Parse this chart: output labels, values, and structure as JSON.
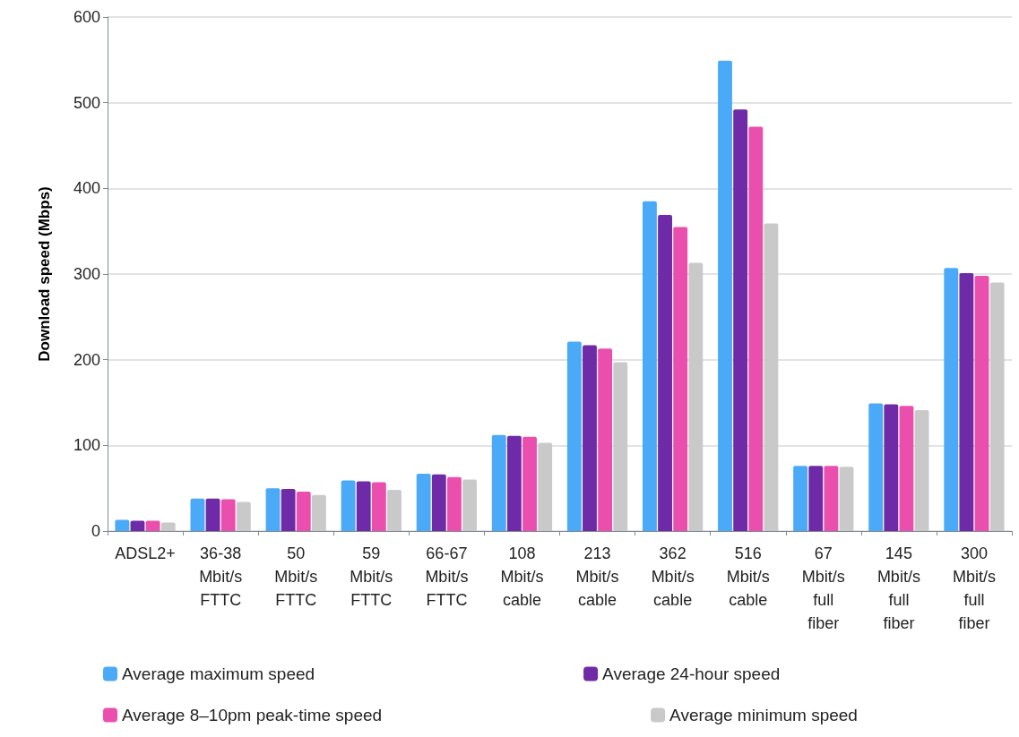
{
  "chart_data": {
    "type": "bar",
    "ylabel": "Download speed (Mbps)",
    "categories": [
      "ADSL2+",
      "36-38\nMbit/s\nFTTC",
      "50\nMbit/s\nFTTC",
      "59\nMbit/s\nFTTC",
      "66-67\nMbit/s\nFTTC",
      "108\nMbit/s\ncable",
      "213\nMbit/s\ncable",
      "362\nMbit/s\ncable",
      "516\nMbit/s\ncable",
      "67\nMbit/s\nfull\nfiber",
      "145\nMbit/s\nfull\nfiber",
      "300\nMbit/s\nfull\nfiber"
    ],
    "series": [
      {
        "name": "Average maximum speed",
        "color": "#4aaaf8",
        "values": [
          13,
          38,
          50,
          59,
          67,
          112,
          221,
          385,
          549,
          76,
          149,
          307
        ]
      },
      {
        "name": "Average 24-hour speed",
        "color": "#6f2aa8",
        "values": [
          12,
          38,
          49,
          58,
          66,
          111,
          217,
          369,
          492,
          76,
          148,
          301
        ]
      },
      {
        "name": "Average 8–10pm peak-time speed",
        "color": "#ea4fad",
        "values": [
          12,
          37,
          46,
          57,
          63,
          110,
          213,
          355,
          472,
          76,
          146,
          298
        ]
      },
      {
        "name": "Average minimum speed",
        "color": "#c9c9c9",
        "values": [
          10,
          34,
          42,
          48,
          60,
          103,
          197,
          313,
          359,
          75,
          141,
          290
        ]
      }
    ],
    "ylim": [
      0,
      600
    ],
    "yticks": [
      0,
      100,
      200,
      300,
      400,
      500,
      600
    ],
    "grid": "y",
    "legend": "bottom"
  }
}
